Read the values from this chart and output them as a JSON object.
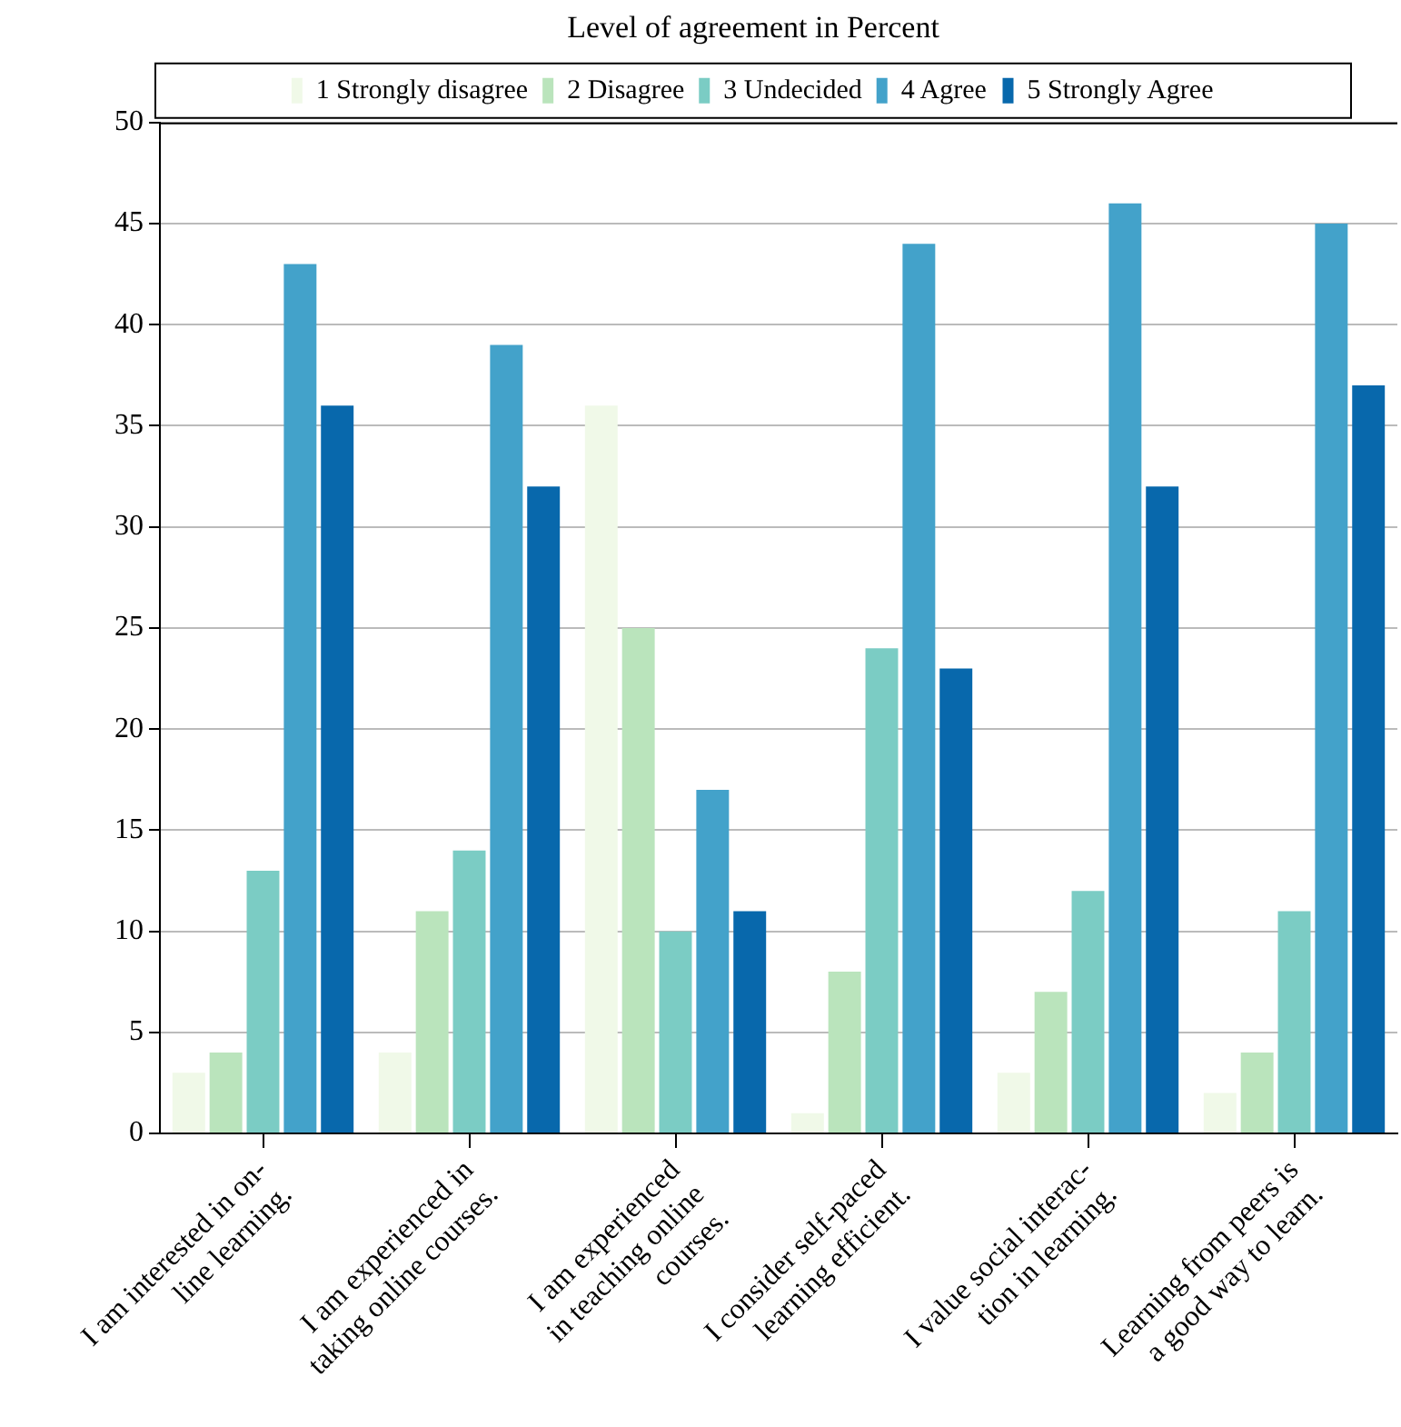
{
  "chart_data": {
    "type": "bar",
    "title": "Level of agreement in Percent",
    "categories": [
      "I am interested in on-\nline learning.",
      "I am experienced in\ntaking online courses.",
      "I am experienced\nin teaching online\ncourses.",
      "I consider self-paced\nlearning efficient.",
      "I value social interac-\ntion in learning.",
      "Learning from peers is\na good way to learn."
    ],
    "series": [
      {
        "name": "1 Strongly disagree",
        "color": "#f0f9e8",
        "values": [
          3,
          4,
          36,
          1,
          3,
          2
        ]
      },
      {
        "name": "2 Disagree",
        "color": "#bae4bc",
        "values": [
          4,
          11,
          25,
          8,
          7,
          4
        ]
      },
      {
        "name": "3 Undecided",
        "color": "#7bccc4",
        "values": [
          13,
          14,
          10,
          24,
          12,
          11
        ]
      },
      {
        "name": "4 Agree",
        "color": "#43a2ca",
        "values": [
          43,
          39,
          17,
          44,
          46,
          45
        ]
      },
      {
        "name": "5 Strongly Agree",
        "color": "#0868ac",
        "values": [
          36,
          32,
          11,
          23,
          32,
          37
        ]
      }
    ],
    "ylim": [
      0,
      50
    ],
    "yticks": [
      0,
      5,
      10,
      15,
      20,
      25,
      30,
      35,
      40,
      45,
      50
    ],
    "grid": "y",
    "legend": "top"
  }
}
